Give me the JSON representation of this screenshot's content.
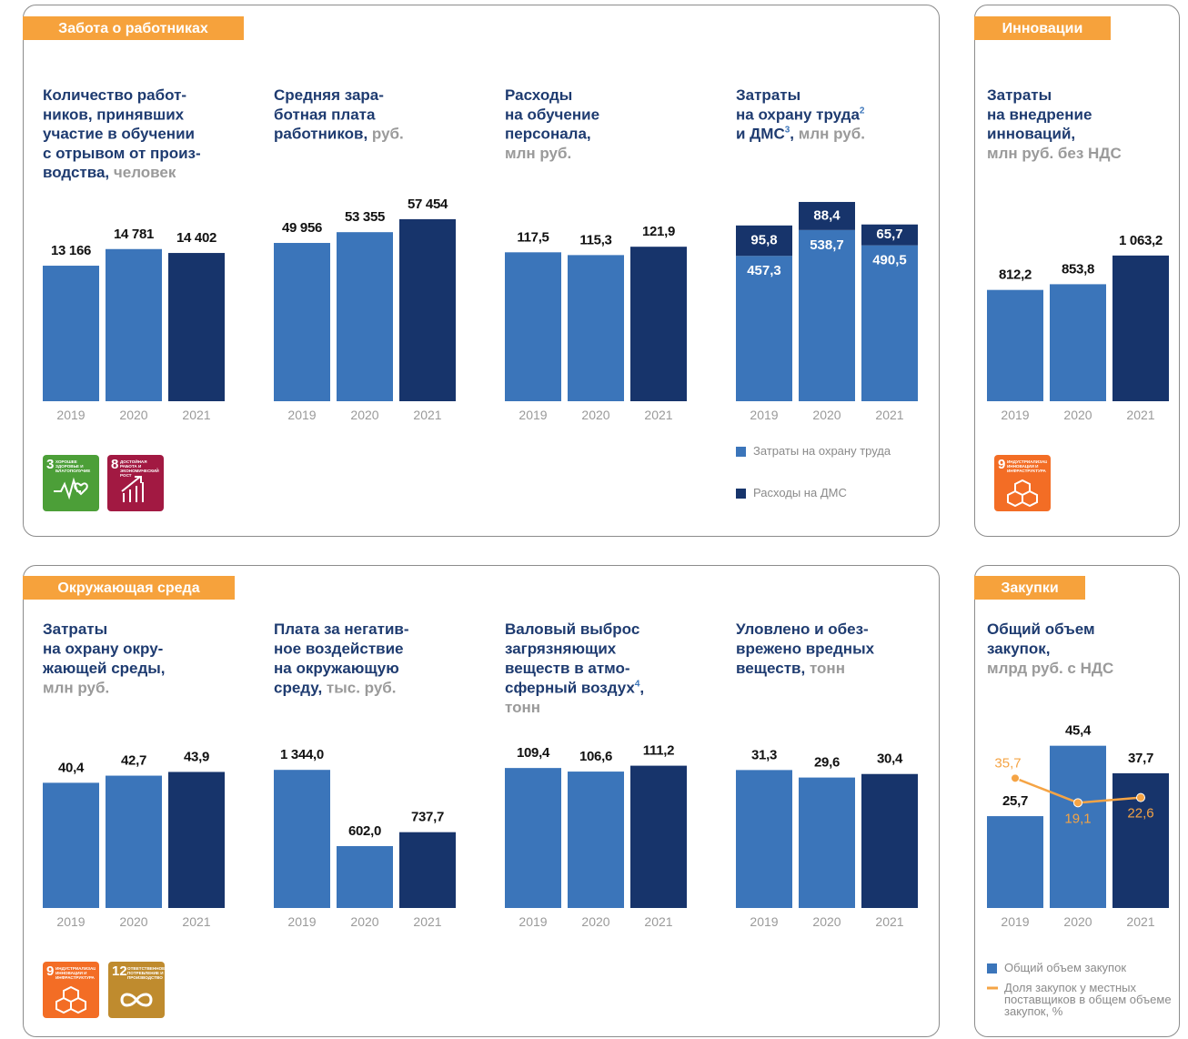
{
  "sections": [
    {
      "title": "Забота о работниках",
      "sdg": [
        {
          "number": 3,
          "label": "ХОРОШЕЕ ЗДОРОВЬЕ И БЛАГОПОЛУЧИЕ",
          "color": "#4c9f38"
        },
        {
          "number": 8,
          "label": "ДОСТОЙНАЯ РАБОТА И ЭКОНОМИЧЕСКИЙ РОСТ",
          "color": "#a21942"
        }
      ],
      "chart_data": [
        {
          "type": "bar",
          "title_lines": [
            [
              {
                "text": "Количество работ-"
              }
            ],
            [
              {
                "text": "ников, принявших"
              }
            ],
            [
              {
                "text": "участие в обучении"
              }
            ],
            [
              {
                "text": "с отрывом от произ-"
              }
            ],
            [
              {
                "text": "водства, "
              },
              {
                "text": "человек",
                "style": "unit"
              }
            ]
          ],
          "categories": [
            "2019",
            "2020",
            "2021"
          ],
          "values": [
            13166,
            14781,
            14402
          ],
          "value_labels": [
            "13 166",
            "14 781",
            "14 402"
          ],
          "colors": [
            "#3b75ba",
            "#3b75ba",
            "#17346b"
          ],
          "ylim": [
            0,
            21300
          ]
        },
        {
          "type": "bar",
          "title_lines": [
            [
              {
                "text": "Средняя зара-"
              }
            ],
            [
              {
                "text": "ботная плата"
              }
            ],
            [
              {
                "text": "работников, "
              },
              {
                "text": "руб.",
                "style": "unit"
              }
            ]
          ],
          "categories": [
            "2019",
            "2020",
            "2021"
          ],
          "values": [
            49956,
            53355,
            57454
          ],
          "value_labels": [
            "49 956",
            "53 355",
            "57 454"
          ],
          "colors": [
            "#3b75ba",
            "#3b75ba",
            "#17346b"
          ],
          "ylim": [
            0,
            69200
          ]
        },
        {
          "type": "bar",
          "title_lines": [
            [
              {
                "text": "Расходы"
              }
            ],
            [
              {
                "text": "на обучение"
              }
            ],
            [
              {
                "text": "персонала,"
              }
            ],
            [
              {
                "text": "млн руб.",
                "style": "unit"
              }
            ]
          ],
          "categories": [
            "2019",
            "2020",
            "2021"
          ],
          "values": [
            117.5,
            115.3,
            121.9
          ],
          "value_labels": [
            "117,5",
            "115,3",
            "121,9"
          ],
          "colors": [
            "#3b75ba",
            "#3b75ba",
            "#17346b"
          ],
          "ylim": [
            0,
            173
          ]
        },
        {
          "type": "stacked_bar",
          "title_lines": [
            [
              {
                "text": "Затраты"
              }
            ],
            [
              {
                "text": "на охрану труда"
              },
              {
                "text": "2",
                "style": "sup"
              }
            ],
            [
              {
                "text": "и ДМС"
              },
              {
                "text": "3",
                "style": "sup"
              },
              {
                "text": ", "
              },
              {
                "text": "млн руб.",
                "style": "unit"
              }
            ]
          ],
          "categories": [
            "2019",
            "2020",
            "2021"
          ],
          "series": [
            {
              "name": "Затраты на охрану труда",
              "color": "#3b75ba",
              "values": [
                457.3,
                538.7,
                490.5
              ],
              "value_labels": [
                "457,3",
                "538,7",
                "490,5"
              ]
            },
            {
              "name": "Расходы на ДМС",
              "color": "#17346b",
              "values": [
                95.8,
                88.4,
                65.7
              ],
              "value_labels": [
                "95,8",
                "88,4",
                "65,7"
              ]
            }
          ],
          "ylim": [
            0,
            690
          ],
          "legend": true
        }
      ]
    },
    {
      "title": "Инновации",
      "sdg": [
        {
          "number": 9,
          "label": "ИНДУСТРИАЛИЗАЦИЯ, ИННОВАЦИИ И ИНФРАСТРУКТУРА",
          "color": "#f36d25"
        }
      ],
      "chart_data": [
        {
          "type": "bar",
          "title_lines": [
            [
              {
                "text": "Затраты"
              }
            ],
            [
              {
                "text": "на внедрение"
              }
            ],
            [
              {
                "text": "инноваций,"
              }
            ],
            [
              {
                "text": "млн руб. без НДС",
                "style": "unit"
              }
            ]
          ],
          "categories": [
            "2019",
            "2020",
            "2021"
          ],
          "values": [
            812.2,
            853.8,
            1063.2
          ],
          "value_labels": [
            "812,2",
            "853,8",
            "1 063,2"
          ],
          "colors": [
            "#3b75ba",
            "#3b75ba",
            "#17346b"
          ],
          "ylim": [
            0,
            1600
          ]
        }
      ]
    },
    {
      "title": "Окружающая среда",
      "sdg": [
        {
          "number": 9,
          "label": "ИНДУСТРИАЛИЗАЦИЯ, ИННОВАЦИИ И ИНФРАСТРУКТУРА",
          "color": "#f36d25"
        },
        {
          "number": 12,
          "label": "ОТВЕТСТВЕННОЕ ПОТРЕБЛЕНИЕ И ПРОИЗВОДСТВО",
          "color": "#bf8b2e"
        }
      ],
      "chart_data": [
        {
          "type": "bar",
          "title_lines": [
            [
              {
                "text": "Затраты"
              }
            ],
            [
              {
                "text": "на охрану окру-"
              }
            ],
            [
              {
                "text": "жающей среды,"
              }
            ],
            [
              {
                "text": "млн руб.",
                "style": "unit"
              }
            ]
          ],
          "categories": [
            "2019",
            "2020",
            "2021"
          ],
          "values": [
            40.4,
            42.7,
            43.9
          ],
          "value_labels": [
            "40,4",
            "42,7",
            "43,9"
          ],
          "colors": [
            "#3b75ba",
            "#3b75ba",
            "#17346b"
          ],
          "ylim": [
            0,
            64
          ]
        },
        {
          "type": "bar",
          "title_lines": [
            [
              {
                "text": "Плата за негатив-"
              }
            ],
            [
              {
                "text": "ное воздействие"
              }
            ],
            [
              {
                "text": "на окружающую"
              }
            ],
            [
              {
                "text": "среду, "
              },
              {
                "text": "тыс. руб.",
                "style": "unit"
              }
            ]
          ],
          "categories": [
            "2019",
            "2020",
            "2021"
          ],
          "values": [
            1344.0,
            602.0,
            737.7
          ],
          "value_labels": [
            "1 344,0",
            "602,0",
            "737,7"
          ],
          "colors": [
            "#3b75ba",
            "#3b75ba",
            "#17346b"
          ],
          "ylim": [
            0,
            1930
          ]
        },
        {
          "type": "bar",
          "title_lines": [
            [
              {
                "text": "Валовый выброс"
              }
            ],
            [
              {
                "text": "загрязняющих"
              }
            ],
            [
              {
                "text": "веществ в атмо-"
              }
            ],
            [
              {
                "text": "сферный воздух"
              },
              {
                "text": "4",
                "style": "sup"
              },
              {
                "text": ","
              }
            ],
            [
              {
                "text": "тонн",
                "style": "unit"
              }
            ]
          ],
          "categories": [
            "2019",
            "2020",
            "2021"
          ],
          "values": [
            109.4,
            106.6,
            111.2
          ],
          "value_labels": [
            "109,4",
            "106,6",
            "111,2"
          ],
          "colors": [
            "#3b75ba",
            "#3b75ba",
            "#17346b"
          ],
          "ylim": [
            0,
            155
          ]
        },
        {
          "type": "bar",
          "title_lines": [
            [
              {
                "text": "Уловлено и обез-"
              }
            ],
            [
              {
                "text": "врежено вредных"
              }
            ],
            [
              {
                "text": "веществ, "
              },
              {
                "text": "тонн",
                "style": "unit"
              }
            ]
          ],
          "categories": [
            "2019",
            "2020",
            "2021"
          ],
          "values": [
            31.3,
            29.6,
            30.4
          ],
          "value_labels": [
            "31,3",
            "29,6",
            "30,4"
          ],
          "colors": [
            "#3b75ba",
            "#3b75ba",
            "#17346b"
          ],
          "ylim": [
            0,
            45
          ]
        }
      ]
    },
    {
      "title": "Закупки",
      "sdg": [],
      "chart_data": [
        {
          "type": "bar_line",
          "title_lines": [
            [
              {
                "text": "Общий объем"
              }
            ],
            [
              {
                "text": "закупок,"
              }
            ],
            [
              {
                "text": "млрд руб. с НДС",
                "style": "unit"
              }
            ]
          ],
          "categories": [
            "2019",
            "2020",
            "2021"
          ],
          "series": [
            {
              "name": "Общий объем закупок",
              "color": "#3b75ba",
              "colors": [
                "#3b75ba",
                "#3b75ba",
                "#17346b"
              ],
              "values": [
                25.7,
                45.4,
                37.7
              ],
              "value_labels": [
                "25,7",
                "45,4",
                "37,7"
              ]
            },
            {
              "name": "Доля закупок у местных поставщиков в общем объеме закупок, %",
              "color": "#f5a445",
              "axis": "y2",
              "values": [
                35.7,
                19.1,
                22.6
              ],
              "value_labels": [
                "35,7",
                "19,1",
                "22,6"
              ]
            }
          ],
          "ylim": [
            0,
            55.5
          ],
          "y2lim": [
            -52,
            82
          ],
          "legend": true
        }
      ]
    }
  ]
}
